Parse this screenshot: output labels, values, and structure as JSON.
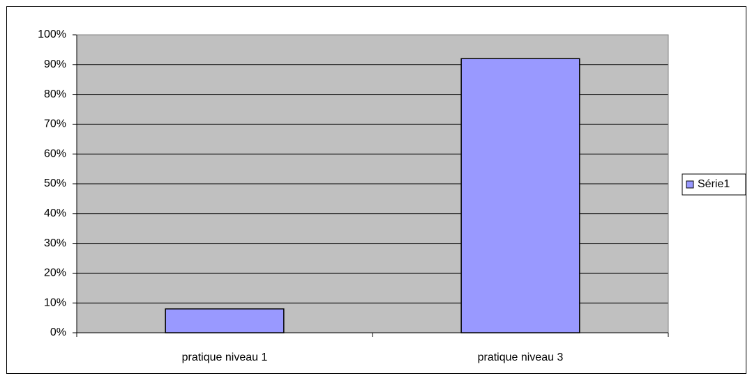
{
  "chart_data": {
    "type": "bar",
    "categories": [
      "pratique niveau 1",
      "pratique niveau 3"
    ],
    "series": [
      {
        "name": "Série1",
        "color": "#9999ff",
        "values": [
          8,
          92
        ]
      }
    ],
    "ylim": [
      0,
      100
    ],
    "yticks": [
      {
        "value": 0,
        "label": "0%"
      },
      {
        "value": 10,
        "label": "10%"
      },
      {
        "value": 20,
        "label": "20%"
      },
      {
        "value": 30,
        "label": "30%"
      },
      {
        "value": 40,
        "label": "40%"
      },
      {
        "value": 50,
        "label": "50%"
      },
      {
        "value": 60,
        "label": "60%"
      },
      {
        "value": 70,
        "label": "70%"
      },
      {
        "value": 80,
        "label": "80%"
      },
      {
        "value": 90,
        "label": "90%"
      },
      {
        "value": 100,
        "label": "100%"
      }
    ],
    "grid": true,
    "legend": "right",
    "plot_background": "#c0c0c0"
  }
}
